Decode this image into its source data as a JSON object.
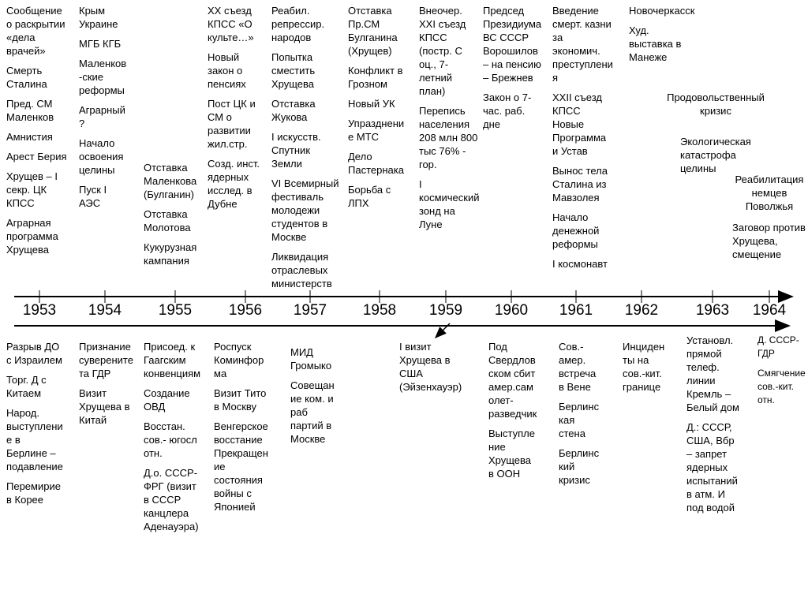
{
  "years": [
    "1953",
    "1954",
    "1955",
    "1956",
    "1957",
    "1958",
    "1959",
    "1960",
    "1961",
    "1962",
    "1963",
    "1964"
  ],
  "top": [
    [
      "Сообщение\nо раскрытии\n«дела\nврачей»",
      "Смерть\nСталина",
      "Пред. СМ\nМаленков",
      "Амнистия",
      "Арест Берия",
      "Хрущев – I\nсекр. ЦК\nКПСС",
      "Аграрная\nпрограмма\nХрущева"
    ],
    [
      "Крым\nУкраине",
      "МГБ   КГБ",
      "Маленков\n-ские\nреформы",
      "Аграрный\n?",
      "Начало\nосвоения\nцелины",
      "Пуск I\nАЭС"
    ],
    [
      "Отставка\nМаленкова\n(Булганин)",
      "Отставка\nМолотова",
      "Кукурузная\nкампания"
    ],
    [
      "XX съезд\nКПСС «О\nкульте…»",
      "Новый\nзакон о\nпенсиях",
      "Пост ЦК и\nСМ о\nразвитии\nжил.стр.",
      "Созд. инст.\nядерных\nисслед. в\nДубне"
    ],
    [
      "Реабил.\nрепрессир.\nнародов",
      "Попытка\nсместить\nХрущева",
      "Отставка\nЖукова",
      "I искусств.\nСпутник\nЗемли",
      "VI Всемирный\nфестиваль\nмолодежи\nстудентов в\nМоскве",
      "Ликвидация\nотраслевых\nминистерств"
    ],
    [
      "Отставка\nПр.СМ\nБулганина\n(Хрущев)",
      "Конфликт в\nГрозном",
      "Новый УК",
      "Упразднени\nе МТС",
      "Дело\nПастернака",
      "Борьба с\nЛПХ"
    ],
    [
      "Внеочер.\nXXI съезд\nКПСС\n(постр. С\nоц., 7-\nлетний\nплан)",
      "Перепись\nнаселения\n208 млн 800\nтыс 76% -\nгор.",
      "I\nкосмический\nзонд на\nЛуне"
    ],
    [
      "Председ\nПрезидиума\nВС СССР\nВорошилов\n– на пенсию\n– Брежнев",
      "Закон о 7-\nчас. раб.\nдне"
    ],
    [
      "Введение\nсмерт. казни\nза\nэкономич.\nпреступлени\nя",
      "XXII съезд\nКПСС\nНовые\nПрограмма\nи Устав",
      " Вынос тела\nСталина из\nМавзолея",
      "Начало\nденежной\nреформы",
      "I космонавт"
    ],
    [
      "Новочеркасск",
      "Худ.\nвыставка в\nМанеже"
    ],
    [
      "Продовольственный\nкризис"
    ],
    [
      "Экологическая\nкатастрофа\nцелины"
    ],
    [
      "Реабилитация\nнемцев\nПоволжья"
    ],
    [
      "Заговор против\nХрущева,\nсмещение"
    ]
  ],
  "bottom": [
    [
      "Разрыв ДО\nс Израилем",
      "Торг. Д с\nКитаем",
      "Народ.\nвыступлени\nе в\nБерлине –\nподавление",
      "Перемирие\nв Корее"
    ],
    [
      "Признание\nсуверените\nта ГДР",
      "Визит\nХрущева в\nКитай"
    ],
    [
      "Присоед. к\nГаагским\nконвенциям",
      "Создание\nОВД",
      "Восстан.\nсов.- югосл\nотн.",
      "Д.о. СССР-\nФРГ (визит\nв СССР\nканцлера\nАденауэра)"
    ],
    [
      "Роспуск\nКоминфор\nма",
      "Визит Тито\nв Москву",
      "Венгерское\nвосстание",
      "Прекращен\nие\nсостояния\nвойны с\nЯпонией"
    ],
    [
      "МИД\nГромыко",
      "Совещан\nие ком. и\nраб\nпартий в\nМоскве"
    ],
    [
      "I визит\nХрущева в\nСША\n(Эйзенхауэр)"
    ],
    [
      "Под\nСвердлов\nском сбит\nамер.сам\nолет-\nразведчик",
      "Выступле\nние\nХрущева\nв ООН"
    ],
    [
      "Сов.-\nамер.\nвстреча\nв Вене",
      "Берлинс\nкая\nстена",
      "Берлинс\nкий\nкризис"
    ],
    [
      "Инциден\nты на\nсов.-кит.\nгранице"
    ],
    [
      "Установл.\nпрямой\nтелеф.\nлинии\nКремль –\nБелый дом",
      "Д.: СССР,\nСША, Вбр\n– запрет\nядерных\nиспытаний\nв атм. И\nпод водой"
    ],
    [
      "Д. СССР-\nГДР",
      "Смягчение\nсов.-кит.\nотн."
    ]
  ]
}
